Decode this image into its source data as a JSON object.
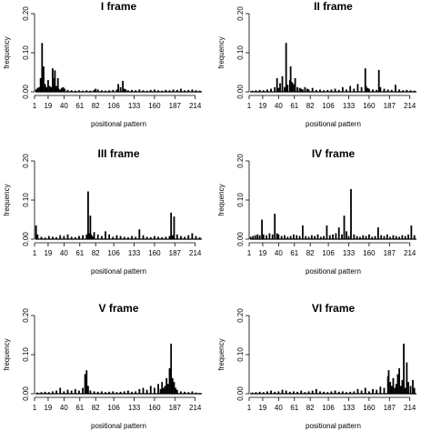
{
  "chart_data": [
    {
      "type": "bar",
      "title": "I frame",
      "xlabel": "positional pattern",
      "ylabel": "frequency",
      "ylim": [
        0,
        0.2
      ],
      "yticks": [
        "0.00",
        "0.10",
        "0.20"
      ],
      "xtick_labels": [
        "1",
        "19",
        "40",
        "61",
        "82",
        "106",
        "133",
        "160",
        "187",
        "214"
      ],
      "xlim": [
        1,
        224
      ],
      "x": [
        3,
        5,
        7,
        9,
        11,
        12,
        13,
        15,
        17,
        19,
        21,
        23,
        25,
        27,
        28,
        29,
        30,
        31,
        32,
        33,
        35,
        37,
        39,
        41,
        45,
        50,
        55,
        60,
        65,
        70,
        75,
        80,
        82,
        85,
        90,
        95,
        100,
        105,
        110,
        112,
        115,
        118,
        120,
        122,
        125,
        130,
        135,
        140,
        145,
        150,
        155,
        160,
        165,
        170,
        175,
        180,
        185,
        190,
        195,
        200,
        205,
        210,
        215,
        220
      ],
      "y": [
        0.006,
        0.01,
        0.012,
        0.035,
        0.125,
        0.015,
        0.065,
        0.02,
        0.012,
        0.03,
        0.015,
        0.012,
        0.06,
        0.035,
        0.055,
        0.012,
        0.015,
        0.01,
        0.035,
        0.008,
        0.006,
        0.01,
        0.012,
        0.008,
        0.005,
        0.004,
        0.003,
        0.004,
        0.003,
        0.004,
        0.003,
        0.005,
        0.008,
        0.006,
        0.004,
        0.003,
        0.004,
        0.005,
        0.006,
        0.02,
        0.012,
        0.028,
        0.008,
        0.006,
        0.004,
        0.005,
        0.004,
        0.006,
        0.004,
        0.003,
        0.005,
        0.006,
        0.004,
        0.003,
        0.005,
        0.004,
        0.006,
        0.005,
        0.008,
        0.004,
        0.005,
        0.006,
        0.004,
        0.003
      ]
    },
    {
      "type": "bar",
      "title": "II frame",
      "xlabel": "positional pattern",
      "ylabel": "frequency",
      "ylim": [
        0,
        0.2
      ],
      "yticks": [
        "0.00",
        "0.10",
        "0.20"
      ],
      "xtick_labels": [
        "1",
        "19",
        "40",
        "61",
        "82",
        "106",
        "133",
        "160",
        "187",
        "214"
      ],
      "xlim": [
        1,
        224
      ],
      "x": [
        5,
        10,
        15,
        20,
        25,
        30,
        35,
        38,
        40,
        42,
        45,
        48,
        50,
        52,
        55,
        56,
        58,
        60,
        62,
        65,
        68,
        70,
        72,
        75,
        78,
        80,
        85,
        90,
        95,
        100,
        105,
        110,
        115,
        120,
        125,
        130,
        135,
        140,
        145,
        150,
        155,
        156,
        158,
        160,
        165,
        170,
        173,
        175,
        180,
        185,
        190,
        195,
        200,
        205,
        210,
        215,
        220
      ],
      "y": [
        0.003,
        0.004,
        0.005,
        0.004,
        0.006,
        0.008,
        0.012,
        0.035,
        0.01,
        0.022,
        0.04,
        0.012,
        0.125,
        0.018,
        0.03,
        0.065,
        0.025,
        0.02,
        0.035,
        0.012,
        0.01,
        0.008,
        0.006,
        0.012,
        0.008,
        0.006,
        0.01,
        0.005,
        0.006,
        0.004,
        0.005,
        0.006,
        0.008,
        0.005,
        0.012,
        0.006,
        0.015,
        0.008,
        0.02,
        0.012,
        0.06,
        0.015,
        0.01,
        0.008,
        0.006,
        0.005,
        0.056,
        0.012,
        0.008,
        0.006,
        0.005,
        0.018,
        0.006,
        0.004,
        0.005,
        0.004,
        0.003
      ]
    },
    {
      "type": "bar",
      "title": "III frame",
      "xlabel": "positional pattern",
      "ylabel": "frequency",
      "ylim": [
        0,
        0.2
      ],
      "yticks": [
        "0.00",
        "0.10",
        "0.20"
      ],
      "xtick_labels": [
        "1",
        "19",
        "40",
        "61",
        "82",
        "106",
        "133",
        "160",
        "187",
        "214"
      ],
      "xlim": [
        1,
        224
      ],
      "x": [
        3,
        5,
        10,
        15,
        20,
        25,
        30,
        35,
        40,
        45,
        50,
        55,
        60,
        65,
        70,
        72,
        74,
        75,
        76,
        78,
        80,
        85,
        90,
        95,
        100,
        105,
        110,
        115,
        120,
        125,
        130,
        135,
        140,
        145,
        150,
        155,
        160,
        165,
        170,
        175,
        180,
        182,
        184,
        186,
        190,
        195,
        200,
        205,
        210,
        215,
        220
      ],
      "y": [
        0.035,
        0.012,
        0.006,
        0.004,
        0.008,
        0.006,
        0.005,
        0.01,
        0.008,
        0.012,
        0.006,
        0.005,
        0.008,
        0.01,
        0.012,
        0.122,
        0.015,
        0.06,
        0.012,
        0.008,
        0.018,
        0.012,
        0.008,
        0.02,
        0.012,
        0.006,
        0.01,
        0.008,
        0.006,
        0.005,
        0.008,
        0.006,
        0.025,
        0.01,
        0.006,
        0.005,
        0.008,
        0.006,
        0.005,
        0.006,
        0.008,
        0.068,
        0.01,
        0.058,
        0.012,
        0.008,
        0.006,
        0.01,
        0.015,
        0.008,
        0.005
      ]
    },
    {
      "type": "bar",
      "title": "IV frame",
      "xlabel": "positional pattern",
      "ylabel": "frequency",
      "ylim": [
        0,
        0.2
      ],
      "yticks": [
        "0.00",
        "0.10",
        "0.20"
      ],
      "xtick_labels": [
        "1",
        "19",
        "40",
        "61",
        "82",
        "106",
        "133",
        "160",
        "187",
        "214"
      ],
      "xlim": [
        1,
        224
      ],
      "x": [
        3,
        6,
        9,
        12,
        15,
        18,
        20,
        24,
        28,
        32,
        35,
        38,
        40,
        44,
        48,
        52,
        56,
        60,
        64,
        68,
        72,
        76,
        80,
        84,
        88,
        92,
        96,
        100,
        104,
        108,
        112,
        116,
        120,
        124,
        127,
        130,
        133,
        136,
        140,
        144,
        148,
        152,
        156,
        160,
        164,
        168,
        172,
        176,
        180,
        184,
        188,
        192,
        196,
        200,
        204,
        208,
        212,
        216,
        220
      ],
      "y": [
        0.006,
        0.008,
        0.01,
        0.012,
        0.01,
        0.05,
        0.012,
        0.01,
        0.015,
        0.012,
        0.065,
        0.015,
        0.012,
        0.008,
        0.01,
        0.006,
        0.008,
        0.012,
        0.01,
        0.008,
        0.035,
        0.008,
        0.006,
        0.01,
        0.008,
        0.012,
        0.006,
        0.008,
        0.035,
        0.01,
        0.012,
        0.015,
        0.03,
        0.012,
        0.06,
        0.02,
        0.008,
        0.128,
        0.012,
        0.008,
        0.006,
        0.01,
        0.008,
        0.012,
        0.006,
        0.008,
        0.03,
        0.01,
        0.008,
        0.012,
        0.006,
        0.01,
        0.008,
        0.006,
        0.01,
        0.008,
        0.012,
        0.035,
        0.01
      ]
    },
    {
      "type": "bar",
      "title": "V frame",
      "xlabel": "positional pattern",
      "ylabel": "frequency",
      "ylim": [
        0,
        0.2
      ],
      "yticks": [
        "0.00",
        "0.10",
        "0.20"
      ],
      "xtick_labels": [
        "1",
        "19",
        "40",
        "61",
        "82",
        "106",
        "133",
        "160",
        "187",
        "214"
      ],
      "xlim": [
        1,
        224
      ],
      "x": [
        5,
        10,
        15,
        20,
        25,
        30,
        35,
        40,
        45,
        50,
        55,
        60,
        65,
        68,
        70,
        72,
        75,
        80,
        85,
        90,
        95,
        100,
        105,
        110,
        115,
        120,
        125,
        130,
        135,
        140,
        145,
        150,
        155,
        160,
        165,
        168,
        170,
        172,
        174,
        176,
        178,
        180,
        182,
        184,
        186,
        188,
        190,
        195,
        200,
        205,
        210,
        215,
        220
      ],
      "y": [
        0.003,
        0.004,
        0.005,
        0.004,
        0.006,
        0.008,
        0.015,
        0.006,
        0.01,
        0.008,
        0.012,
        0.008,
        0.015,
        0.05,
        0.06,
        0.02,
        0.008,
        0.006,
        0.005,
        0.006,
        0.004,
        0.005,
        0.006,
        0.004,
        0.005,
        0.006,
        0.008,
        0.005,
        0.006,
        0.012,
        0.015,
        0.01,
        0.02,
        0.015,
        0.025,
        0.012,
        0.03,
        0.015,
        0.02,
        0.04,
        0.025,
        0.065,
        0.128,
        0.04,
        0.03,
        0.015,
        0.01,
        0.006,
        0.005,
        0.004,
        0.006,
        0.003,
        0.002
      ]
    },
    {
      "type": "bar",
      "title": "VI frame",
      "xlabel": "positional pattern",
      "ylabel": "frequency",
      "ylim": [
        0,
        0.2
      ],
      "yticks": [
        "0.00",
        "0.10",
        "0.20"
      ],
      "xtick_labels": [
        "1",
        "19",
        "40",
        "61",
        "82",
        "106",
        "133",
        "160",
        "187",
        "214"
      ],
      "xlim": [
        1,
        224
      ],
      "x": [
        5,
        10,
        15,
        20,
        25,
        30,
        35,
        40,
        45,
        50,
        55,
        60,
        65,
        70,
        75,
        80,
        85,
        90,
        95,
        100,
        105,
        110,
        115,
        120,
        125,
        130,
        135,
        140,
        145,
        150,
        155,
        160,
        165,
        170,
        175,
        180,
        185,
        186,
        188,
        190,
        192,
        194,
        196,
        198,
        200,
        202,
        204,
        206,
        208,
        210,
        212,
        215,
        218,
        220
      ],
      "y": [
        0.003,
        0.004,
        0.005,
        0.004,
        0.006,
        0.008,
        0.005,
        0.006,
        0.01,
        0.008,
        0.005,
        0.006,
        0.005,
        0.008,
        0.004,
        0.006,
        0.008,
        0.012,
        0.006,
        0.005,
        0.004,
        0.006,
        0.008,
        0.005,
        0.006,
        0.004,
        0.005,
        0.006,
        0.012,
        0.008,
        0.015,
        0.006,
        0.012,
        0.01,
        0.018,
        0.015,
        0.045,
        0.06,
        0.03,
        0.02,
        0.04,
        0.015,
        0.025,
        0.05,
        0.065,
        0.02,
        0.035,
        0.128,
        0.015,
        0.08,
        0.03,
        0.02,
        0.035,
        0.015
      ]
    }
  ]
}
